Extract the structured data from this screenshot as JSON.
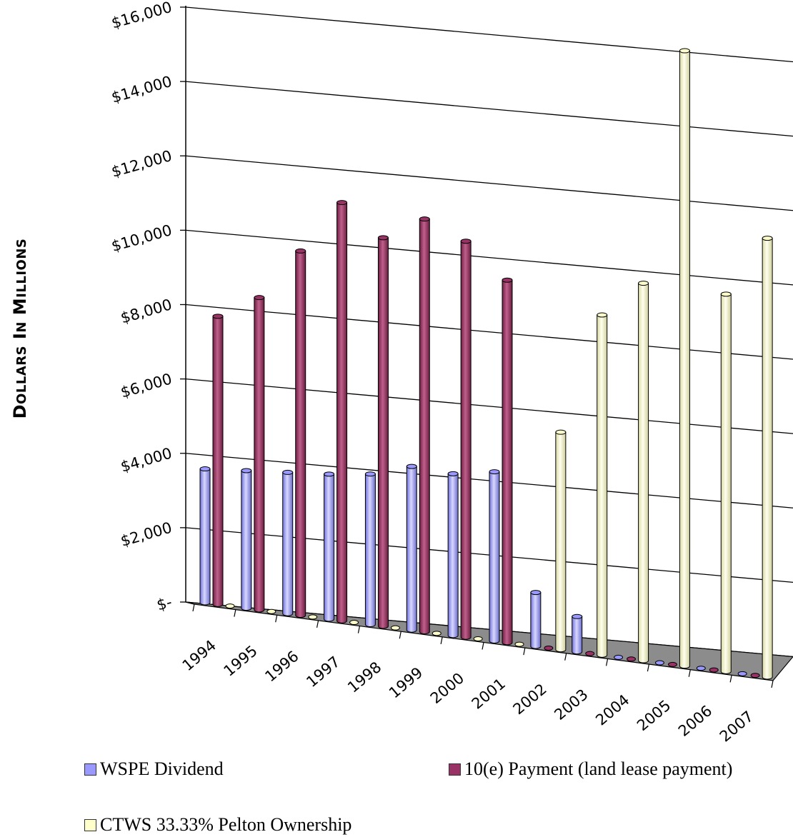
{
  "chart_data": {
    "type": "bar",
    "ylabel": "Dollars in Millions",
    "yticks": [
      "$16,000",
      "$14,000",
      "$12,000",
      "$10,000",
      "$8,000",
      "$6,000",
      "$4,000",
      "$2,000",
      "$-"
    ],
    "ylim": [
      0,
      16000
    ],
    "categories": [
      "1994",
      "1995",
      "1996",
      "1997",
      "1998",
      "1999",
      "2000",
      "2001",
      "2002",
      "2003",
      "2004",
      "2005",
      "2006",
      "2007"
    ],
    "series": [
      {
        "name": "WSPE Dividend",
        "color": "#9999ff",
        "values": [
          3600,
          3700,
          3800,
          3900,
          4050,
          4400,
          4350,
          4550,
          1450,
          950,
          0,
          0,
          0,
          0
        ]
      },
      {
        "name": "10(e) Payment (land lease payment)",
        "color": "#993366",
        "values": [
          7750,
          8400,
          9800,
          11250,
          10450,
          11100,
          10650,
          9750,
          0,
          0,
          0,
          0,
          0,
          0
        ]
      },
      {
        "name": "CTWS 33.33% Pelton Ownership",
        "color": "#ffffcc",
        "values": [
          0,
          0,
          0,
          0,
          0,
          0,
          0,
          0,
          5850,
          9150,
          10150,
          16550,
          10150,
          11800
        ]
      }
    ],
    "grid": true,
    "legend_position": "bottom"
  }
}
